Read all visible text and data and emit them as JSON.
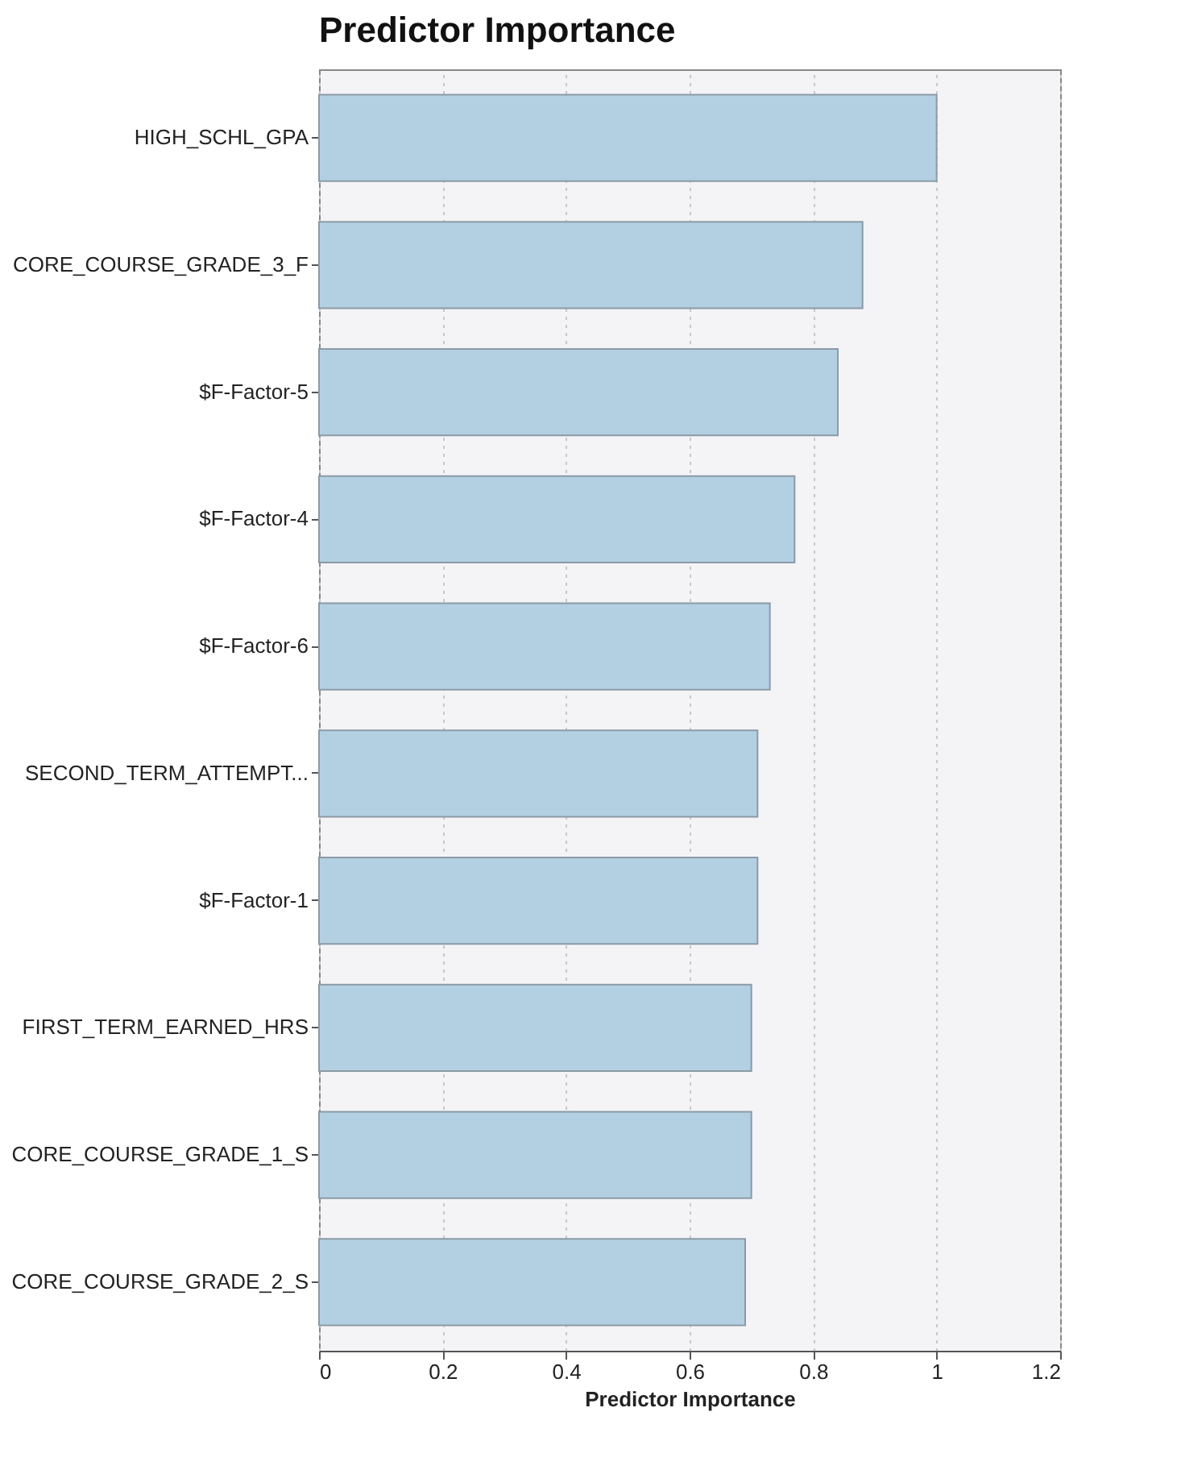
{
  "chart_data": {
    "type": "bar",
    "orientation": "horizontal",
    "title": "Predictor Importance",
    "xlabel": "Predictor Importance",
    "categories": [
      "HIGH_SCHL_GPA",
      "CORE_COURSE_GRADE_3_F",
      "$F-Factor-5",
      "$F-Factor-4",
      "$F-Factor-6",
      "SECOND_TERM_ATTEMPT...",
      "$F-Factor-1",
      "FIRST_TERM_EARNED_HRS",
      "CORE_COURSE_GRADE_1_S",
      "CORE_COURSE_GRADE_2_S"
    ],
    "values": [
      1.0,
      0.88,
      0.84,
      0.77,
      0.73,
      0.71,
      0.71,
      0.7,
      0.7,
      0.69
    ],
    "color": "#b3d0e2",
    "xlim": [
      0,
      1.2
    ],
    "xticks": [
      0,
      0.2,
      0.4,
      0.6,
      0.8,
      1,
      1.2
    ],
    "grid": "x"
  }
}
